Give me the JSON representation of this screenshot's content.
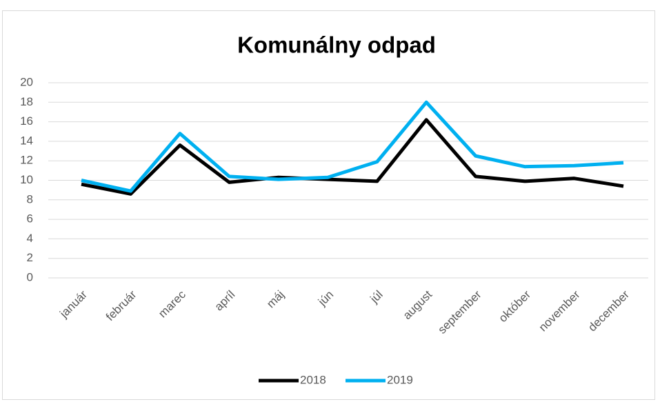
{
  "chart_data": {
    "type": "line",
    "title": "Komunálny odpad",
    "categories": [
      "január",
      "február",
      "marec",
      "apríl",
      "máj",
      "jún",
      "júl",
      "august",
      "september",
      "október",
      "november",
      "december"
    ],
    "series": [
      {
        "name": "2018",
        "color": "#000000",
        "values": [
          9.6,
          8.6,
          13.6,
          9.8,
          10.3,
          10.1,
          9.9,
          16.2,
          10.4,
          9.9,
          10.2,
          9.4
        ]
      },
      {
        "name": "2019",
        "color": "#00b0f0",
        "values": [
          10.0,
          8.9,
          14.8,
          10.4,
          10.1,
          10.3,
          11.9,
          18.0,
          12.5,
          11.4,
          11.5,
          11.8
        ]
      }
    ],
    "ylim": [
      0,
      20
    ],
    "yticks": [
      0,
      2,
      4,
      6,
      8,
      10,
      12,
      14,
      16,
      18,
      20
    ],
    "grid": true,
    "legend": "bottom"
  }
}
